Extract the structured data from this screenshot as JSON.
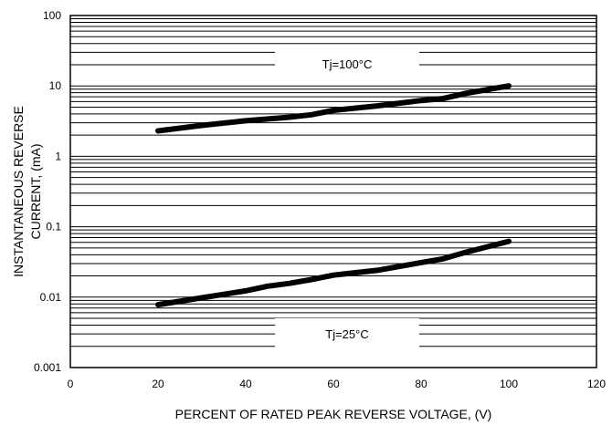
{
  "chart_data": {
    "type": "line",
    "title": "",
    "xlabel": "PERCENT OF RATED PEAK REVERSE VOLTAGE, (V)",
    "ylabel_lines": [
      "INSTANTANEOUS REVERSE",
      "CURRENT, (mA)"
    ],
    "x_scale": "linear",
    "y_scale": "log",
    "xlim": [
      0,
      120
    ],
    "ylim": [
      0.001,
      100
    ],
    "x_ticks": [
      0,
      20,
      40,
      60,
      80,
      100,
      120
    ],
    "x_tick_labels": [
      "0",
      "20",
      "40",
      "60",
      "80",
      "100",
      "120"
    ],
    "y_ticks": [
      0.001,
      0.01,
      0.1,
      1,
      10,
      100
    ],
    "y_tick_labels": [
      "0.001",
      "0.01",
      "0.1",
      "1",
      "10",
      "100"
    ],
    "grid": true,
    "series": [
      {
        "name": "Tj=100°C",
        "x": [
          20,
          30,
          40,
          50,
          55,
          60,
          70,
          80,
          85,
          90,
          100
        ],
        "y": [
          2.3,
          2.75,
          3.2,
          3.6,
          3.9,
          4.5,
          5.2,
          6.2,
          6.6,
          7.8,
          10
        ]
      },
      {
        "name": "Tj=25°C",
        "x": [
          20,
          30,
          40,
          45,
          50,
          55,
          60,
          70,
          80,
          85,
          90,
          100
        ],
        "y": [
          0.0078,
          0.0098,
          0.0123,
          0.0143,
          0.0157,
          0.0178,
          0.0205,
          0.024,
          0.031,
          0.035,
          0.043,
          0.062
        ]
      }
    ]
  }
}
